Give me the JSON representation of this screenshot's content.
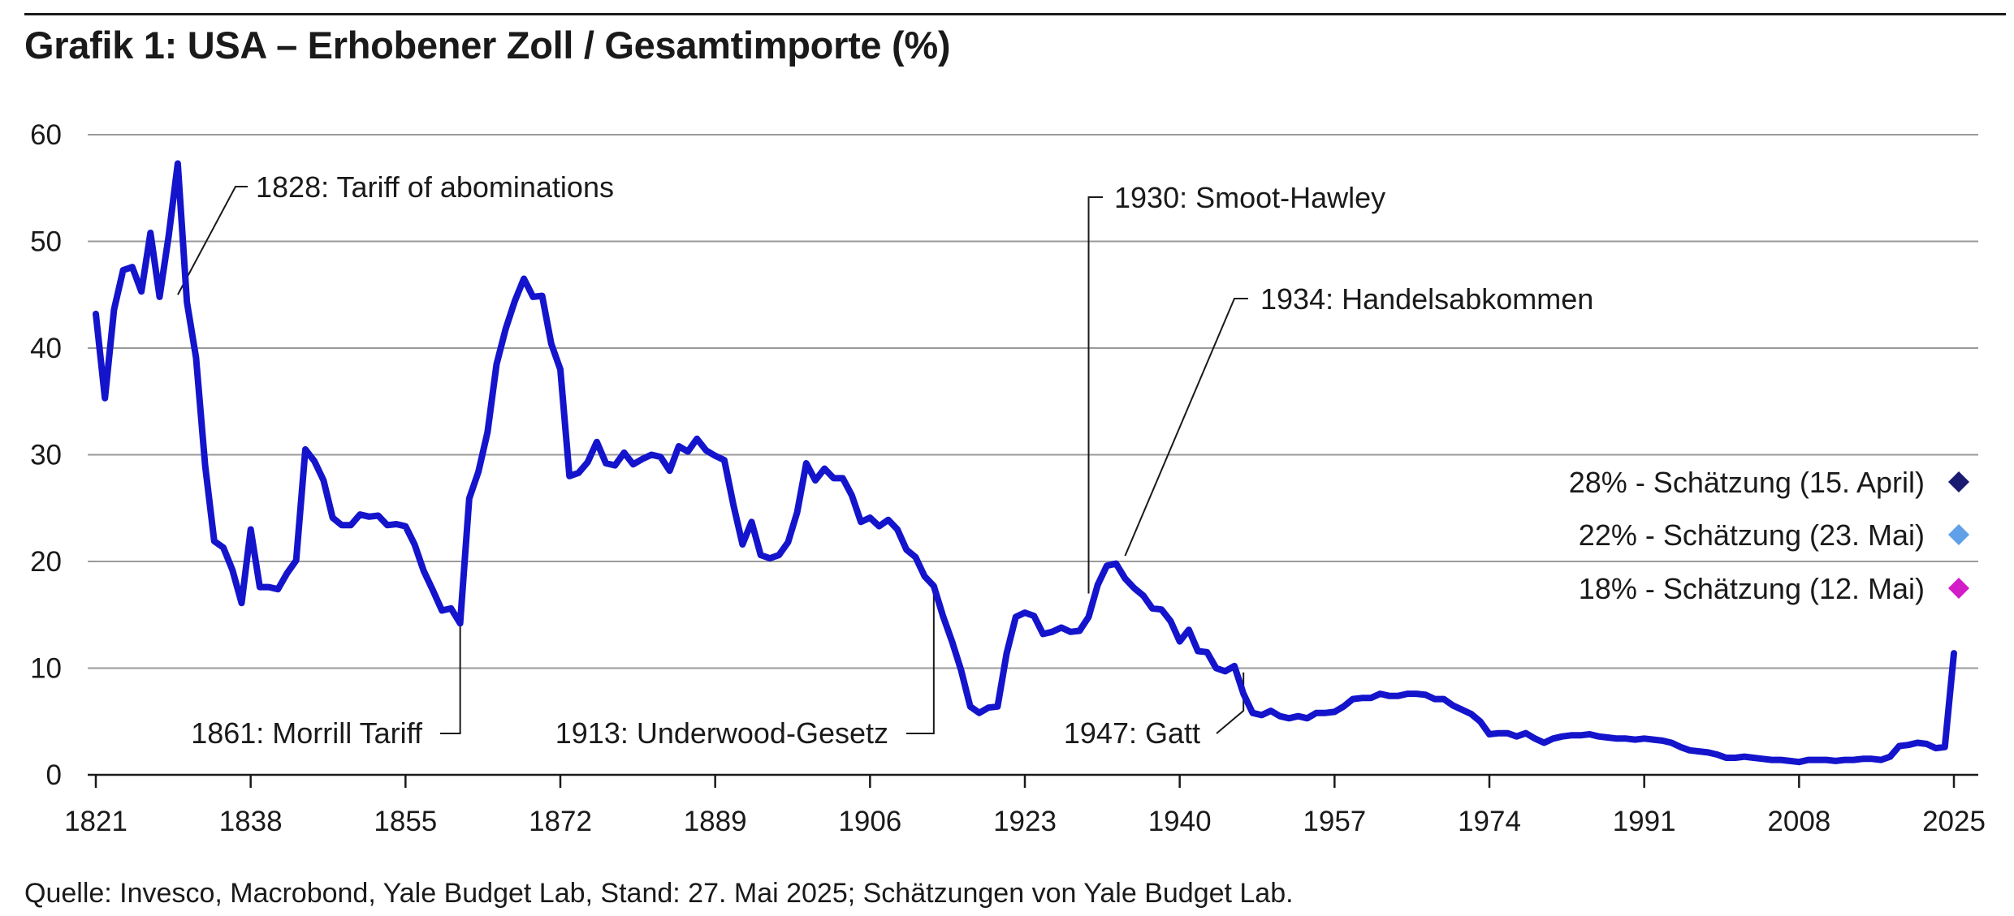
{
  "title": "Grafik 1: USA – Erhobener Zoll / Gesamtimporte (%)",
  "source": "Quelle: Invesco, Macrobond, Yale Budget Lab, Stand: 27. Mai 2025; Schätzungen von Yale Budget Lab.",
  "colors": {
    "line": "#1414cc",
    "grid": "#9a9a9a",
    "axis": "#1a1a1a",
    "text": "#1a1a1a"
  },
  "chart_data": {
    "type": "line",
    "title": "Grafik 1: USA – Erhobener Zoll / Gesamtimporte (%)",
    "xlabel": "",
    "ylabel": "",
    "xlim": [
      1821,
      2025
    ],
    "ylim": [
      0,
      60
    ],
    "grid": true,
    "x_ticks": [
      1821,
      1838,
      1855,
      1872,
      1889,
      1906,
      1923,
      1940,
      1957,
      1974,
      1991,
      2008,
      2025
    ],
    "y_ticks": [
      0,
      10,
      20,
      30,
      40,
      50,
      60
    ],
    "series": [
      {
        "name": "",
        "points": [
          [
            1821,
            43.2
          ],
          [
            1822,
            35.3
          ],
          [
            1823,
            43.6
          ],
          [
            1824,
            47.3
          ],
          [
            1825,
            47.6
          ],
          [
            1826,
            45.3
          ],
          [
            1827,
            50.8
          ],
          [
            1828,
            44.8
          ],
          [
            1829,
            50.5
          ],
          [
            1830,
            57.3
          ],
          [
            1831,
            44.3
          ],
          [
            1832,
            39.1
          ],
          [
            1833,
            29.0
          ],
          [
            1834,
            21.9
          ],
          [
            1835,
            21.3
          ],
          [
            1836,
            19.2
          ],
          [
            1837,
            16.1
          ],
          [
            1838,
            23.0
          ],
          [
            1839,
            17.6
          ],
          [
            1840,
            17.6
          ],
          [
            1841,
            17.4
          ],
          [
            1842,
            18.9
          ],
          [
            1843,
            20.1
          ],
          [
            1844,
            30.5
          ],
          [
            1845,
            29.4
          ],
          [
            1846,
            27.6
          ],
          [
            1847,
            24.1
          ],
          [
            1848,
            23.4
          ],
          [
            1849,
            23.4
          ],
          [
            1850,
            24.4
          ],
          [
            1851,
            24.2
          ],
          [
            1852,
            24.3
          ],
          [
            1853,
            23.4
          ],
          [
            1854,
            23.5
          ],
          [
            1855,
            23.3
          ],
          [
            1856,
            21.6
          ],
          [
            1857,
            19.1
          ],
          [
            1858,
            17.3
          ],
          [
            1859,
            15.4
          ],
          [
            1860,
            15.6
          ],
          [
            1861,
            14.2
          ],
          [
            1862,
            25.9
          ],
          [
            1863,
            28.4
          ],
          [
            1864,
            32.1
          ],
          [
            1865,
            38.5
          ],
          [
            1866,
            41.8
          ],
          [
            1867,
            44.4
          ],
          [
            1868,
            46.5
          ],
          [
            1869,
            44.8
          ],
          [
            1870,
            44.9
          ],
          [
            1871,
            40.4
          ],
          [
            1872,
            38.0
          ],
          [
            1873,
            28.0
          ],
          [
            1874,
            28.3
          ],
          [
            1875,
            29.3
          ],
          [
            1876,
            31.2
          ],
          [
            1877,
            29.2
          ],
          [
            1878,
            29.0
          ],
          [
            1879,
            30.2
          ],
          [
            1880,
            29.1
          ],
          [
            1881,
            29.6
          ],
          [
            1882,
            30.0
          ],
          [
            1883,
            29.8
          ],
          [
            1884,
            28.5
          ],
          [
            1885,
            30.8
          ],
          [
            1886,
            30.3
          ],
          [
            1887,
            31.5
          ],
          [
            1888,
            30.4
          ],
          [
            1889,
            29.9
          ],
          [
            1890,
            29.5
          ],
          [
            1891,
            25.3
          ],
          [
            1892,
            21.6
          ],
          [
            1893,
            23.7
          ],
          [
            1894,
            20.6
          ],
          [
            1895,
            20.3
          ],
          [
            1896,
            20.6
          ],
          [
            1897,
            21.8
          ],
          [
            1898,
            24.6
          ],
          [
            1899,
            29.2
          ],
          [
            1900,
            27.6
          ],
          [
            1901,
            28.7
          ],
          [
            1902,
            27.8
          ],
          [
            1903,
            27.8
          ],
          [
            1904,
            26.2
          ],
          [
            1905,
            23.7
          ],
          [
            1906,
            24.1
          ],
          [
            1907,
            23.3
          ],
          [
            1908,
            23.9
          ],
          [
            1909,
            23.0
          ],
          [
            1910,
            21.1
          ],
          [
            1911,
            20.4
          ],
          [
            1912,
            18.6
          ],
          [
            1913,
            17.7
          ],
          [
            1914,
            14.9
          ],
          [
            1915,
            12.5
          ],
          [
            1916,
            9.8
          ],
          [
            1917,
            6.4
          ],
          [
            1918,
            5.8
          ],
          [
            1919,
            6.3
          ],
          [
            1920,
            6.4
          ],
          [
            1921,
            11.4
          ],
          [
            1922,
            14.8
          ],
          [
            1923,
            15.2
          ],
          [
            1924,
            14.9
          ],
          [
            1925,
            13.2
          ],
          [
            1926,
            13.4
          ],
          [
            1927,
            13.8
          ],
          [
            1928,
            13.4
          ],
          [
            1929,
            13.5
          ],
          [
            1930,
            14.8
          ],
          [
            1931,
            17.8
          ],
          [
            1932,
            19.6
          ],
          [
            1933,
            19.8
          ],
          [
            1934,
            18.4
          ],
          [
            1935,
            17.5
          ],
          [
            1936,
            16.8
          ],
          [
            1937,
            15.6
          ],
          [
            1938,
            15.5
          ],
          [
            1939,
            14.4
          ],
          [
            1940,
            12.5
          ],
          [
            1941,
            13.6
          ],
          [
            1942,
            11.6
          ],
          [
            1943,
            11.5
          ],
          [
            1944,
            10.0
          ],
          [
            1945,
            9.7
          ],
          [
            1946,
            10.2
          ],
          [
            1947,
            7.6
          ],
          [
            1948,
            5.8
          ],
          [
            1949,
            5.6
          ],
          [
            1950,
            6.0
          ],
          [
            1951,
            5.5
          ],
          [
            1952,
            5.3
          ],
          [
            1953,
            5.5
          ],
          [
            1954,
            5.3
          ],
          [
            1955,
            5.8
          ],
          [
            1956,
            5.8
          ],
          [
            1957,
            5.9
          ],
          [
            1958,
            6.4
          ],
          [
            1959,
            7.1
          ],
          [
            1960,
            7.2
          ],
          [
            1961,
            7.2
          ],
          [
            1962,
            7.6
          ],
          [
            1963,
            7.4
          ],
          [
            1964,
            7.4
          ],
          [
            1965,
            7.6
          ],
          [
            1966,
            7.6
          ],
          [
            1967,
            7.5
          ],
          [
            1968,
            7.1
          ],
          [
            1969,
            7.1
          ],
          [
            1970,
            6.5
          ],
          [
            1971,
            6.1
          ],
          [
            1972,
            5.7
          ],
          [
            1973,
            5.0
          ],
          [
            1974,
            3.8
          ],
          [
            1975,
            3.9
          ],
          [
            1976,
            3.9
          ],
          [
            1977,
            3.6
          ],
          [
            1978,
            3.9
          ],
          [
            1979,
            3.4
          ],
          [
            1980,
            3.0
          ],
          [
            1981,
            3.4
          ],
          [
            1982,
            3.6
          ],
          [
            1983,
            3.7
          ],
          [
            1984,
            3.7
          ],
          [
            1985,
            3.8
          ],
          [
            1986,
            3.6
          ],
          [
            1987,
            3.5
          ],
          [
            1988,
            3.4
          ],
          [
            1989,
            3.4
          ],
          [
            1990,
            3.3
          ],
          [
            1991,
            3.4
          ],
          [
            1992,
            3.3
          ],
          [
            1993,
            3.2
          ],
          [
            1994,
            3.0
          ],
          [
            1995,
            2.6
          ],
          [
            1996,
            2.3
          ],
          [
            1997,
            2.2
          ],
          [
            1998,
            2.1
          ],
          [
            1999,
            1.9
          ],
          [
            2000,
            1.6
          ],
          [
            2001,
            1.6
          ],
          [
            2002,
            1.7
          ],
          [
            2003,
            1.6
          ],
          [
            2004,
            1.5
          ],
          [
            2005,
            1.4
          ],
          [
            2006,
            1.4
          ],
          [
            2007,
            1.3
          ],
          [
            2008,
            1.2
          ],
          [
            2009,
            1.4
          ],
          [
            2010,
            1.4
          ],
          [
            2011,
            1.4
          ],
          [
            2012,
            1.3
          ],
          [
            2013,
            1.4
          ],
          [
            2014,
            1.4
          ],
          [
            2015,
            1.5
          ],
          [
            2016,
            1.5
          ],
          [
            2017,
            1.4
          ],
          [
            2018,
            1.7
          ],
          [
            2019,
            2.7
          ],
          [
            2020,
            2.8
          ],
          [
            2021,
            3.0
          ],
          [
            2022,
            2.9
          ],
          [
            2023,
            2.5
          ],
          [
            2024,
            2.6
          ],
          [
            2025,
            11.4
          ]
        ]
      }
    ],
    "annotations": [
      {
        "label": "1828: Tariff of abominations",
        "x": 1830,
        "y": 45
      },
      {
        "label": "1861: Morrill Tariff",
        "x": 1861,
        "y": 14
      },
      {
        "label": "1913: Underwood-Gesetz",
        "x": 1913,
        "y": 17
      },
      {
        "label": "1930: Smoot-Hawley",
        "x": 1930,
        "y": 17
      },
      {
        "label": "1934: Handelsabkommen",
        "x": 1934,
        "y": 19
      },
      {
        "label": "1947: Gatt",
        "x": 1947,
        "y": 9.6
      }
    ],
    "legend_position": "right",
    "legend": [
      {
        "label": "28% - Schätzung (15. April)",
        "value": 28,
        "color": "#1a1a70"
      },
      {
        "label": "22% - Schätzung (23. Mai)",
        "value": 22,
        "color": "#5fa0e8"
      },
      {
        "label": "18% - Schätzung (12. Mai)",
        "value": 18,
        "color": "#d21cc8"
      }
    ]
  }
}
